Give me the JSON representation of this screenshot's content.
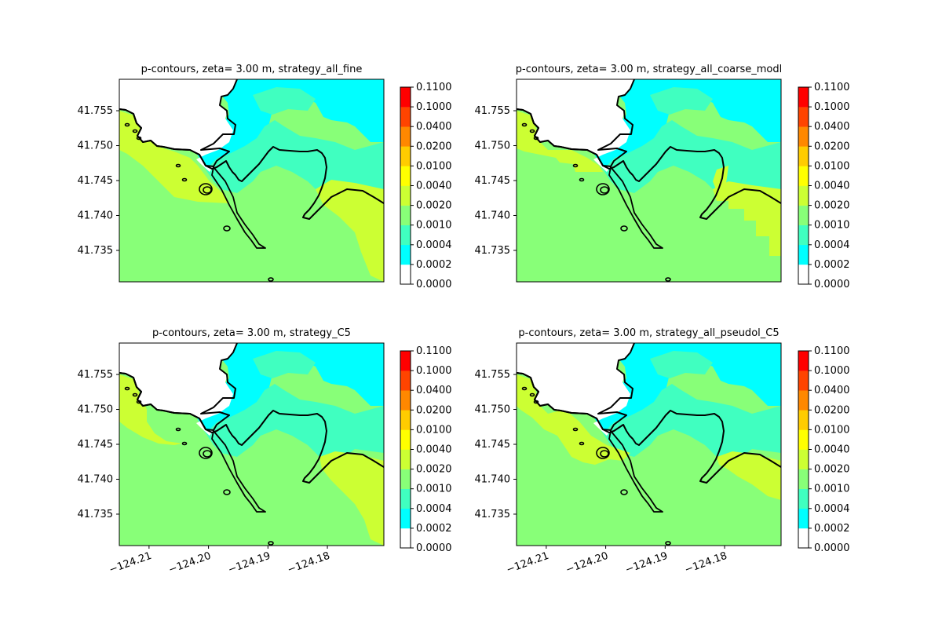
{
  "chart_data": {
    "type": "heatmap",
    "shared_levels": {
      "colors": [
        "#ffffff",
        "#00ffff",
        "#40ffc0",
        "#88ff78",
        "#ccff33",
        "#ffff00",
        "#ffcc00",
        "#ff8800",
        "#ff4400",
        "#ff0000"
      ],
      "labels": [
        "0.0000",
        "0.0002",
        "0.0004",
        "0.0010",
        "0.0020",
        "0.0040",
        "0.0100",
        "0.0200",
        "0.0400",
        "0.1000",
        "0.1100"
      ]
    },
    "x_ticks": [
      "−124.21",
      "−124.20",
      "−124.19",
      "−124.18"
    ],
    "y_ticks": [
      "41.755",
      "41.750",
      "41.745",
      "41.740",
      "41.735"
    ],
    "xlim": [
      -124.215,
      -124.1705
    ],
    "ylim": [
      41.7305,
      41.7595
    ],
    "panels": [
      {
        "title": "p-contours, zeta= 3.00 m, strategy_all_fine",
        "show_x_ticks": false
      },
      {
        "title": "p-contours, zeta= 3.00 m, strategy_all_coarse_modl",
        "show_x_ticks": false
      },
      {
        "title": "p-contours, zeta= 3.00 m, strategy_C5",
        "show_x_ticks": true
      },
      {
        "title": "p-contours, zeta= 3.00 m, strategy_all_pseudol_C5",
        "show_x_ticks": true
      }
    ]
  }
}
